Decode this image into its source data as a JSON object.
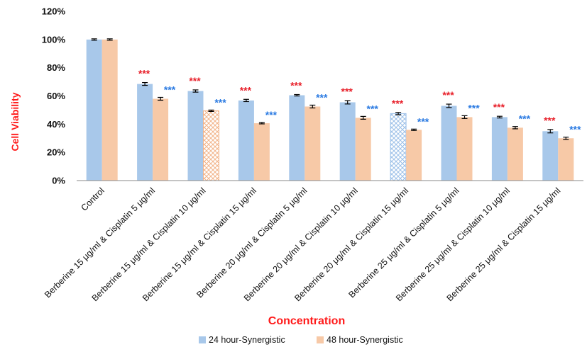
{
  "chart_data": {
    "type": "bar",
    "ylabel": "Cell Viability",
    "xlabel": "Concentration",
    "ylim": [
      0,
      120
    ],
    "yticks": [
      "0%",
      "20%",
      "40%",
      "60%",
      "80%",
      "100%",
      "120%"
    ],
    "grid": false,
    "legend_position": "bottom",
    "categories": [
      "Control",
      "Berberine 15 μg/ml & Cisplatin 5 μg/ml",
      "Berberine 15 μg/ml & Cisplatin 10 μg/ml",
      "Berberine 15 μg/ml & Cisplatin 15 μg/ml",
      "Berberine 20 μg/ml & Cisplatin 5 μg/ml",
      "Berberine 20 μg/ml & Cisplatin 10 μg/ml",
      "Berberine 20 μg/ml & Cisplatin 15 μg/ml",
      "Berberine 25 μg/ml & Cisplatin 5 μg/ml",
      "Berberine 25 μg/ml & Cisplatin 10 μg/ml",
      "Berberine 25 μg/ml & Cisplatin 15 μg/ml"
    ],
    "series": [
      {
        "name": "24 hour-Synergistic",
        "color": "#a8c8ea",
        "sig_color": "#e8202a",
        "values": [
          100,
          68.5,
          63.5,
          56.8,
          60.5,
          55.5,
          47.5,
          53,
          45,
          35
        ],
        "errors": [
          0.5,
          1,
          0.8,
          0.8,
          0.5,
          1.2,
          0.8,
          1.2,
          0.6,
          1.2
        ],
        "significance": [
          "",
          "***",
          "***",
          "***",
          "***",
          "***",
          "***",
          "***",
          "***",
          "***"
        ],
        "hatched": [
          false,
          false,
          false,
          false,
          false,
          false,
          true,
          false,
          false,
          false
        ]
      },
      {
        "name": "48 hour-Synergistic",
        "color": "#f7c9a7",
        "sig_color": "#2a7ae2",
        "values": [
          100,
          58,
          49.5,
          40.7,
          52.5,
          44.5,
          36,
          45,
          37.5,
          30
        ],
        "errors": [
          0.5,
          1,
          0.5,
          0.5,
          1,
          1,
          0.5,
          1,
          0.8,
          0.8
        ],
        "significance": [
          "",
          "***",
          "***",
          "***",
          "***",
          "***",
          "***",
          "***",
          "***",
          "***"
        ],
        "hatched": [
          false,
          false,
          true,
          false,
          false,
          false,
          false,
          false,
          false,
          false
        ]
      }
    ]
  }
}
